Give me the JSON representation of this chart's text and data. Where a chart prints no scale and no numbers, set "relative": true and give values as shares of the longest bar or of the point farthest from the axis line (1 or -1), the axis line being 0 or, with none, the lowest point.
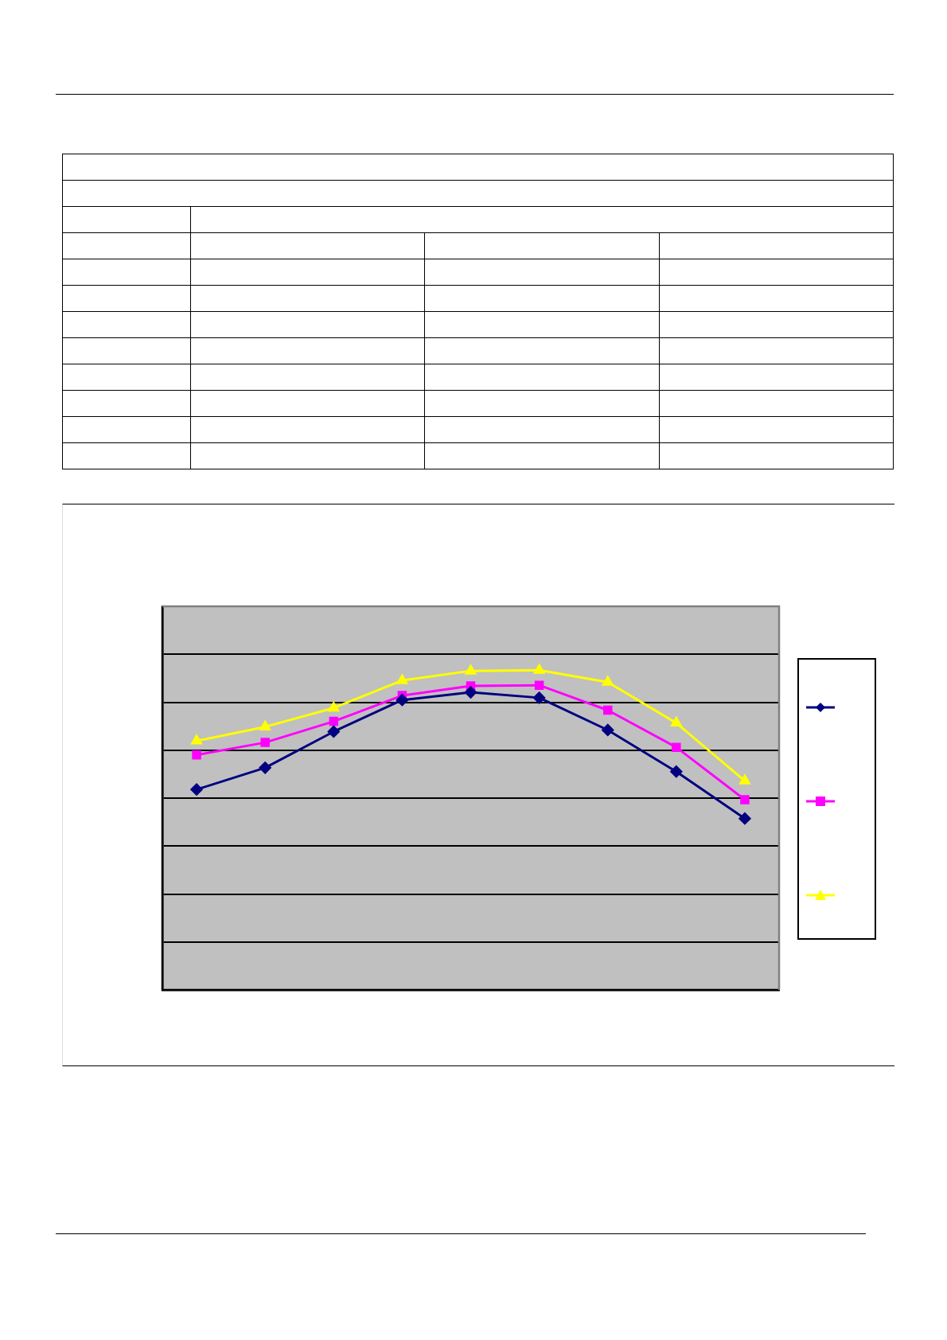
{
  "chart_data": {
    "type": "line",
    "relative": true,
    "grid": "y",
    "categories": [
      null,
      null,
      null,
      null,
      null,
      null,
      null,
      null,
      null
    ],
    "series": [
      {
        "color": "#000080",
        "marker": "diamond",
        "values": [
          0.627,
          0.695,
          0.808,
          0.907,
          0.931,
          0.914,
          0.813,
          0.683,
          0.536
        ]
      },
      {
        "color": "#ff00ff",
        "marker": "square",
        "values": [
          0.735,
          0.774,
          0.84,
          0.921,
          0.951,
          0.953,
          0.875,
          0.759,
          0.595
        ]
      },
      {
        "color": "#ffff00",
        "marker": "triangle",
        "values": [
          0.779,
          0.823,
          0.882,
          0.968,
          0.998,
          1,
          0.963,
          0.835,
          0.654
        ]
      }
    ]
  }
}
